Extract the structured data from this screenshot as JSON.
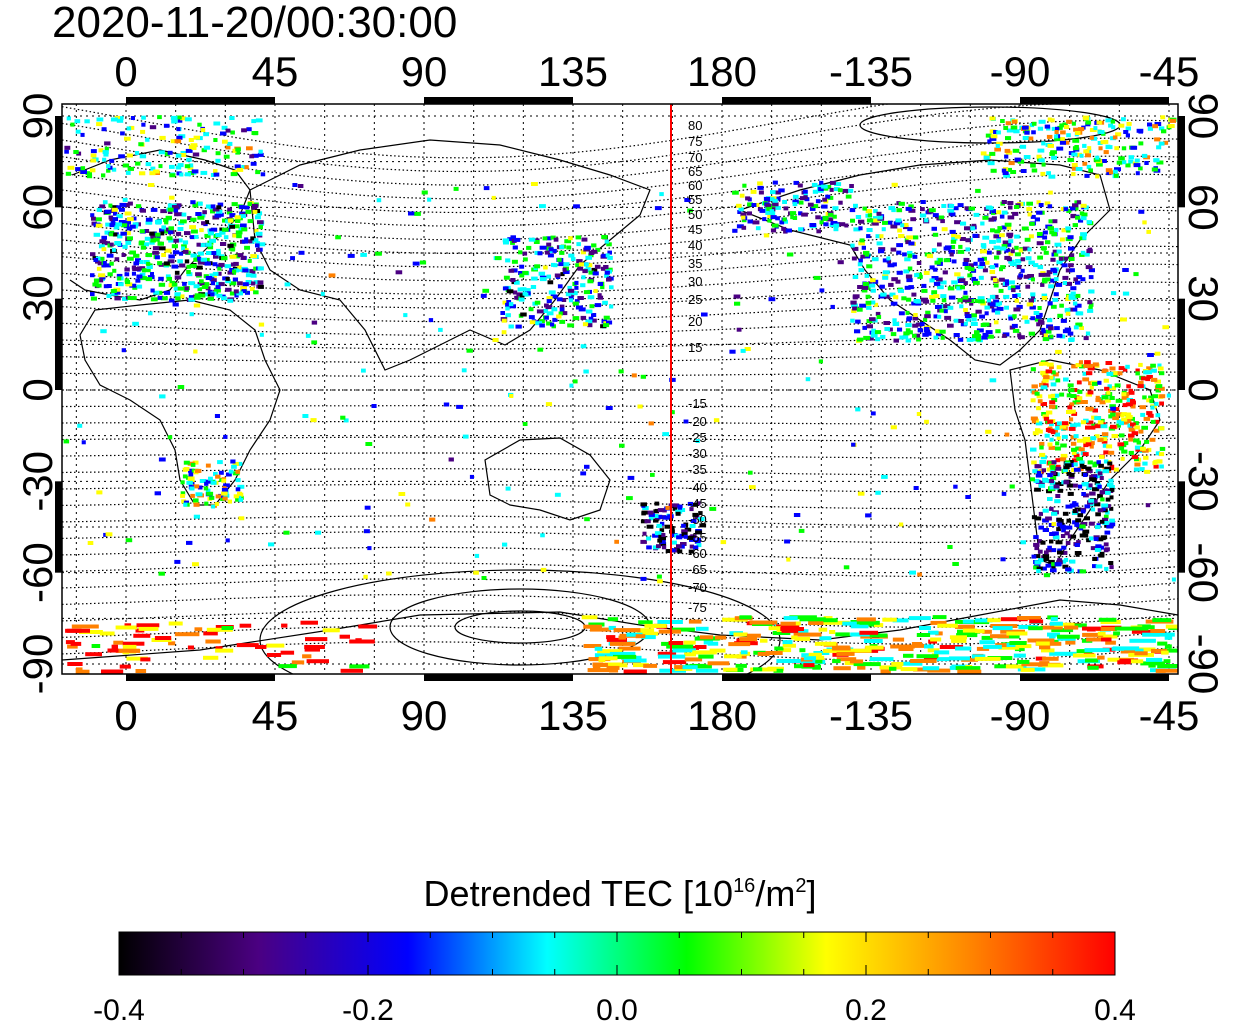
{
  "map": {
    "timestamp": "2020-11-20/00:30:00",
    "x_ticks": [
      "0",
      "45",
      "90",
      "135",
      "180",
      "-135",
      "-90",
      "-45"
    ],
    "y_ticks_left": [
      "90",
      "60",
      "30",
      "0",
      "-30",
      "-60",
      "-90"
    ],
    "y_ticks_right": [
      "90",
      "60",
      "30",
      "0",
      "-30",
      "-60",
      "-90"
    ],
    "contour_labels_north": [
      "80",
      "75",
      "70",
      "65",
      "60",
      "55",
      "50",
      "45",
      "40",
      "35",
      "30",
      "25",
      "20",
      "15"
    ],
    "contour_labels_south": [
      "-15",
      "-20",
      "-25",
      "-30",
      "-35",
      "-40",
      "-45",
      "-50",
      "-55",
      "-60",
      "-65",
      "-70",
      "-75"
    ],
    "colors": {
      "marker_line": "#ff0000",
      "frame": "#000000",
      "grid": "#000000"
    }
  },
  "colorbar": {
    "title_prefix": "Detrended TEC  [10",
    "title_exp1": "16",
    "title_mid": "/m",
    "title_exp2": "2",
    "title_suffix": "]",
    "tick_labels": [
      "-0.4",
      "-0.2",
      "0.0",
      "0.2",
      "0.4"
    ],
    "range": [
      -0.4,
      0.4
    ],
    "gradient": [
      "#000000",
      "#4b0082",
      "#0000ff",
      "#00ffff",
      "#00ff00",
      "#ffff00",
      "#ff8000",
      "#ff0000"
    ]
  }
}
